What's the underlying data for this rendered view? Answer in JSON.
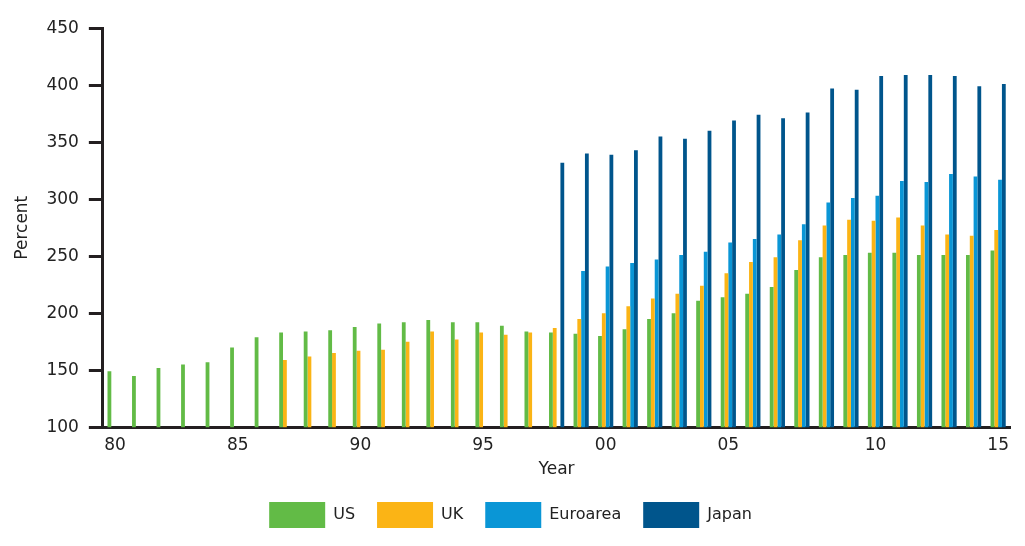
{
  "chart_data": {
    "type": "bar",
    "xlabel": "Year",
    "ylabel": "Percent",
    "categories": [
      "80",
      null,
      null,
      null,
      null,
      "85",
      null,
      null,
      null,
      null,
      "90",
      null,
      null,
      null,
      null,
      "95",
      null,
      null,
      null,
      null,
      "00",
      null,
      null,
      null,
      null,
      "05",
      null,
      null,
      null,
      null,
      null,
      "10",
      null,
      null,
      null,
      null,
      "15"
    ],
    "series": [
      {
        "name": "US",
        "color": "#62bb46",
        "values": [
          149,
          145,
          152,
          155,
          157,
          170,
          179,
          183,
          184,
          185,
          188,
          191,
          192,
          194,
          192,
          192,
          189,
          184,
          183,
          182,
          180,
          186,
          195,
          200,
          211,
          214,
          217,
          223,
          238,
          249,
          251,
          253,
          253,
          251,
          251,
          251,
          255
        ]
      },
      {
        "name": "UK",
        "color": "#fbb415",
        "values": [
          null,
          null,
          null,
          null,
          null,
          null,
          null,
          159,
          162,
          165,
          167,
          168,
          175,
          184,
          177,
          183,
          181,
          183,
          187,
          195,
          200,
          206,
          213,
          217,
          224,
          235,
          245,
          249,
          264,
          277,
          282,
          281,
          284,
          277,
          269,
          268,
          273
        ]
      },
      {
        "name": "Euroarea",
        "color": "#0a96d6",
        "values": [
          null,
          null,
          null,
          null,
          null,
          null,
          null,
          null,
          null,
          null,
          null,
          null,
          null,
          null,
          null,
          null,
          null,
          null,
          null,
          237,
          241,
          244,
          247,
          251,
          254,
          262,
          265,
          269,
          278,
          297,
          301,
          303,
          316,
          315,
          322,
          320,
          317
        ]
      },
      {
        "name": "Japan",
        "color": "#00558c",
        "values": [
          null,
          null,
          null,
          null,
          null,
          null,
          null,
          null,
          null,
          null,
          null,
          null,
          null,
          null,
          null,
          null,
          null,
          null,
          332,
          340,
          339,
          343,
          355,
          353,
          360,
          369,
          374,
          371,
          376,
          397,
          396,
          408,
          409,
          409,
          408,
          399,
          401
        ]
      }
    ],
    "ylim": [
      100,
      450
    ],
    "yticks": [
      100,
      150,
      200,
      250,
      300,
      350,
      400,
      450
    ],
    "grid": false,
    "legend": "bottom"
  }
}
